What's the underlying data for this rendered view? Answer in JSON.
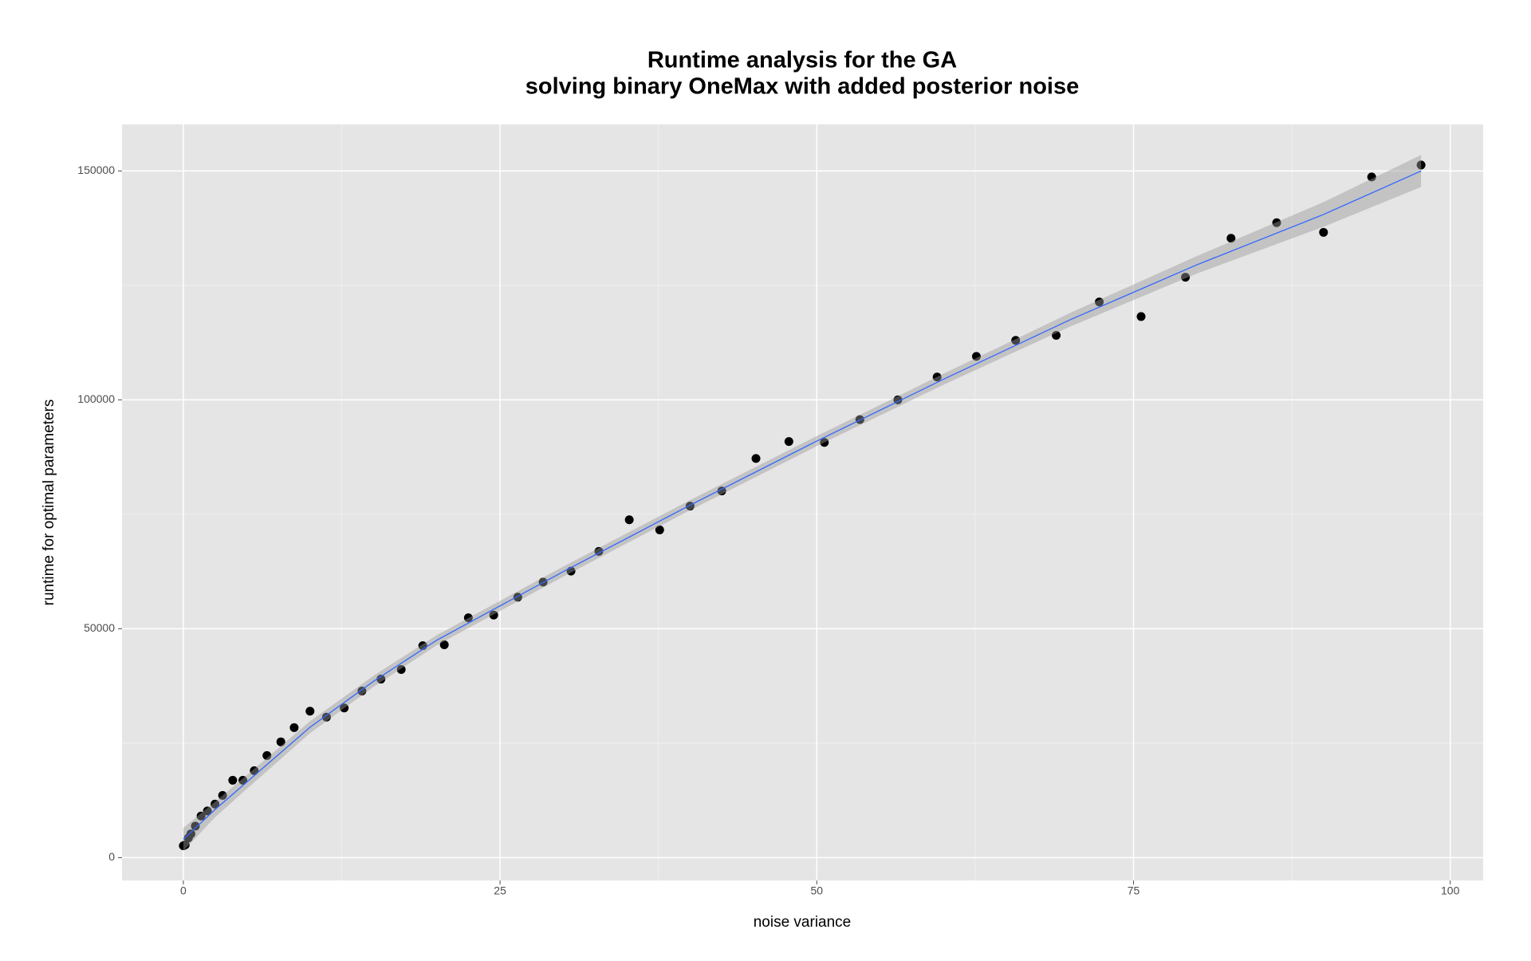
{
  "chart_data": {
    "type": "scatter",
    "title": [
      "Runtime analysis for the GA",
      "solving binary OneMax with added posterior noise"
    ],
    "x_label": "noise variance",
    "y_label": "runtime for optimal parameters",
    "xlim": [
      -4.84,
      102.6
    ],
    "ylim": [
      -4978,
      160173
    ],
    "xticks": [
      0,
      25,
      50,
      75,
      100
    ],
    "yticks": [
      0,
      50000,
      100000,
      150000
    ],
    "x_minor_grid": [
      12.5,
      37.5,
      62.5,
      87.5
    ],
    "y_minor_grid": [
      25000,
      75000,
      125000
    ],
    "grid": true,
    "series": [
      {
        "color": "#000000",
        "x": [
          0,
          0.15,
          0.4,
          0.6,
          0.95,
          1.4,
          1.9,
          2.5,
          3.1,
          3.9,
          4.7,
          5.6,
          6.6,
          7.7,
          8.75,
          10,
          11.3,
          12.7,
          14.1,
          15.6,
          17.2,
          18.9,
          20.6,
          22.5,
          24.5,
          26.4,
          28.4,
          30.6,
          32.8,
          35.2,
          37.6,
          40,
          42.5,
          45.2,
          47.8,
          50.6,
          53.4,
          56.4,
          59.5,
          62.6,
          65.7,
          68.9,
          72.3,
          75.6,
          79.1,
          82.7,
          86.3,
          90,
          93.8,
          97.7
        ],
        "values": [
          2600,
          2800,
          4300,
          5200,
          6900,
          9100,
          10200,
          11700,
          13600,
          16900,
          16900,
          19000,
          22300,
          25300,
          28400,
          32000,
          30700,
          32700,
          36400,
          39000,
          41100,
          46300,
          46500,
          52400,
          53000,
          56900,
          60200,
          62600,
          66900,
          73800,
          71600,
          76800,
          80100,
          87200,
          90900,
          90700,
          95700,
          100000,
          105000,
          109500,
          113000,
          114100,
          121400,
          118200,
          126800,
          135300,
          138700,
          136600,
          148700,
          151300
        ]
      }
    ],
    "fit": {
      "color": "#3366ff",
      "x": [
        0,
        2.5,
        5,
        10,
        15,
        20,
        30,
        40,
        50,
        60,
        70,
        80,
        90,
        97.7
      ],
      "values": [
        4000,
        10500,
        16500,
        28500,
        38500,
        47500,
        62500,
        77000,
        91000,
        104500,
        117500,
        129500,
        140500,
        150000
      ],
      "lower": [
        1500,
        8800,
        15000,
        27200,
        37300,
        46400,
        61400,
        75900,
        89900,
        103300,
        116000,
        127600,
        137800,
        146500
      ],
      "upper": [
        6500,
        12200,
        18000,
        29800,
        39700,
        48600,
        63600,
        78100,
        92100,
        105700,
        119000,
        131400,
        143200,
        153500
      ]
    }
  }
}
